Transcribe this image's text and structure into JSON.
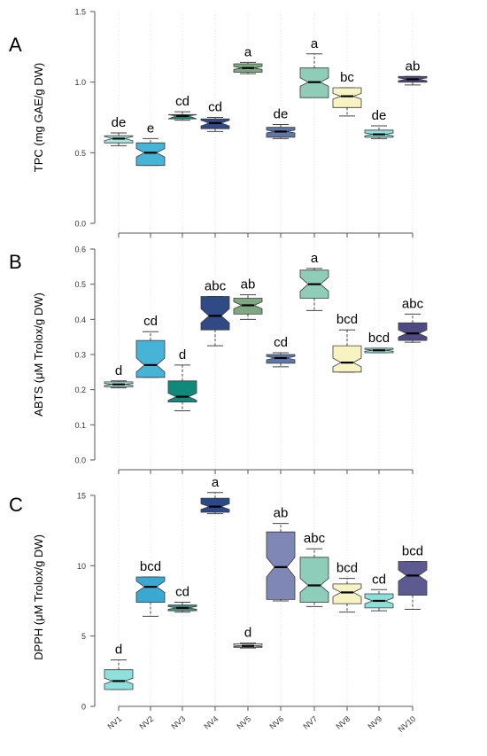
{
  "colors": {
    "NV1": "#a8e6e0",
    "NV2": "#47b3d6",
    "NV3": "#0f8a7a",
    "NV4": "#2f4a85",
    "NV5": "#7ea882",
    "NV6": "#5f77a6",
    "NV7": "#8fcdb8",
    "NV8": "#f7f3c2",
    "NV9": "#8be0da",
    "NV10": "#4f4a82",
    "DPPH_NV1": "#8de0dc",
    "DPPH_NV2": "#3aa9d2",
    "DPPH_NV3": "#3f8f86",
    "DPPH_NV4": "#2c4888",
    "DPPH_NV5": "#f2f2f2",
    "DPPH_NV6": "#7f87b4",
    "DPPH_NV7": "#8fcdbb",
    "DPPH_NV8": "#f7f3c2",
    "DPPH_NV9": "#8be0da",
    "DPPH_NV10": "#5d5a92"
  },
  "chart_data": [
    {
      "type": "boxplot",
      "panel_label": "A",
      "ylabel": "TPC (mg GAE/g DW)",
      "ylim": [
        0,
        1.5
      ],
      "yticks": [
        "0.0",
        "0.5",
        "1.0",
        "1.5"
      ],
      "categories": [
        "NV1",
        "NV2",
        "NV3",
        "NV4",
        "NV5",
        "NV6",
        "NV7",
        "NV8",
        "NV9",
        "NV10"
      ],
      "boxes": [
        {
          "q1": 0.57,
          "median": 0.6,
          "q3": 0.62,
          "notch_lo": 0.585,
          "notch_hi": 0.615,
          "whisker_lo": 0.55,
          "whisker_hi": 0.64,
          "letter": "de"
        },
        {
          "q1": 0.41,
          "median": 0.5,
          "q3": 0.57,
          "notch_lo": 0.47,
          "notch_hi": 0.53,
          "whisker_lo": 0.41,
          "whisker_hi": 0.6,
          "letter": "e"
        },
        {
          "q1": 0.74,
          "median": 0.76,
          "q3": 0.77,
          "notch_lo": 0.74,
          "notch_hi": 0.77,
          "whisker_lo": 0.73,
          "whisker_hi": 0.79,
          "letter": "cd"
        },
        {
          "q1": 0.67,
          "median": 0.71,
          "q3": 0.74,
          "notch_lo": 0.69,
          "notch_hi": 0.73,
          "whisker_lo": 0.65,
          "whisker_hi": 0.75,
          "letter": "cd"
        },
        {
          "q1": 1.07,
          "median": 1.1,
          "q3": 1.13,
          "notch_lo": 1.09,
          "notch_hi": 1.11,
          "whisker_lo": 1.06,
          "whisker_hi": 1.14,
          "letter": "a"
        },
        {
          "q1": 0.61,
          "median": 0.65,
          "q3": 0.68,
          "notch_lo": 0.64,
          "notch_hi": 0.66,
          "whisker_lo": 0.6,
          "whisker_hi": 0.7,
          "letter": "de"
        },
        {
          "q1": 0.89,
          "median": 1.0,
          "q3": 1.1,
          "notch_lo": 0.97,
          "notch_hi": 1.03,
          "whisker_lo": 0.97,
          "whisker_hi": 1.2,
          "letter": "a"
        },
        {
          "q1": 0.82,
          "median": 0.9,
          "q3": 0.96,
          "notch_lo": 0.88,
          "notch_hi": 0.92,
          "whisker_lo": 0.76,
          "whisker_hi": 0.96,
          "letter": "bc"
        },
        {
          "q1": 0.61,
          "median": 0.63,
          "q3": 0.66,
          "notch_lo": 0.62,
          "notch_hi": 0.64,
          "whisker_lo": 0.6,
          "whisker_hi": 0.69,
          "letter": "de"
        },
        {
          "q1": 1.0,
          "median": 1.02,
          "q3": 1.04,
          "notch_lo": 1.01,
          "notch_hi": 1.03,
          "whisker_lo": 0.98,
          "whisker_hi": 1.04,
          "letter": "ab"
        }
      ]
    },
    {
      "type": "boxplot",
      "panel_label": "B",
      "ylabel": "ABTS (μM Trolox/g DW)",
      "ylim": [
        0,
        0.6
      ],
      "yticks": [
        "0.0",
        "0.1",
        "0.2",
        "0.3",
        "0.4",
        "0.5",
        "0.6"
      ],
      "categories": [
        "NV1",
        "NV2",
        "NV3",
        "NV4",
        "NV5",
        "NV6",
        "NV7",
        "NV8",
        "NV9",
        "NV10"
      ],
      "boxes": [
        {
          "q1": 0.208,
          "median": 0.215,
          "q3": 0.222,
          "notch_lo": 0.212,
          "notch_hi": 0.218,
          "whisker_lo": 0.205,
          "whisker_hi": 0.225,
          "letter": "d"
        },
        {
          "q1": 0.235,
          "median": 0.27,
          "q3": 0.34,
          "notch_lo": 0.25,
          "notch_hi": 0.29,
          "whisker_lo": 0.235,
          "whisker_hi": 0.365,
          "letter": "cd"
        },
        {
          "q1": 0.165,
          "median": 0.18,
          "q3": 0.225,
          "notch_lo": 0.17,
          "notch_hi": 0.19,
          "whisker_lo": 0.14,
          "whisker_hi": 0.27,
          "letter": "d"
        },
        {
          "q1": 0.37,
          "median": 0.41,
          "q3": 0.465,
          "notch_lo": 0.39,
          "notch_hi": 0.43,
          "whisker_lo": 0.325,
          "whisker_hi": 0.465,
          "letter": "abc"
        },
        {
          "q1": 0.415,
          "median": 0.44,
          "q3": 0.46,
          "notch_lo": 0.43,
          "notch_hi": 0.45,
          "whisker_lo": 0.4,
          "whisker_hi": 0.47,
          "letter": "ab"
        },
        {
          "q1": 0.275,
          "median": 0.29,
          "q3": 0.3,
          "notch_lo": 0.285,
          "notch_hi": 0.295,
          "whisker_lo": 0.265,
          "whisker_hi": 0.305,
          "letter": "cd"
        },
        {
          "q1": 0.46,
          "median": 0.5,
          "q3": 0.54,
          "notch_lo": 0.48,
          "notch_hi": 0.52,
          "whisker_lo": 0.425,
          "whisker_hi": 0.545,
          "letter": "a"
        },
        {
          "q1": 0.25,
          "median": 0.277,
          "q3": 0.325,
          "notch_lo": 0.265,
          "notch_hi": 0.29,
          "whisker_lo": 0.25,
          "whisker_hi": 0.37,
          "letter": "bcd"
        },
        {
          "q1": 0.305,
          "median": 0.312,
          "q3": 0.318,
          "notch_lo": 0.309,
          "notch_hi": 0.315,
          "whisker_lo": 0.305,
          "whisker_hi": 0.318,
          "letter": "bcd"
        },
        {
          "q1": 0.34,
          "median": 0.36,
          "q3": 0.39,
          "notch_lo": 0.35,
          "notch_hi": 0.37,
          "whisker_lo": 0.335,
          "whisker_hi": 0.415,
          "letter": "abc"
        }
      ]
    },
    {
      "type": "boxplot",
      "panel_label": "C",
      "ylabel": "DPPH (μM Trolox/g DW)",
      "ylim": [
        0,
        15.5
      ],
      "yticks": [
        "0",
        "5",
        "10",
        "15"
      ],
      "categories": [
        "NV1",
        "NV2",
        "NV3",
        "NV4",
        "NV5",
        "NV6",
        "NV7",
        "NV8",
        "NV9",
        "NV10"
      ],
      "boxes": [
        {
          "q1": 1.2,
          "median": 1.8,
          "q3": 2.6,
          "notch_lo": 1.6,
          "notch_hi": 2.0,
          "whisker_lo": 1.2,
          "whisker_hi": 3.3,
          "letter": "d"
        },
        {
          "q1": 7.4,
          "median": 8.5,
          "q3": 9.2,
          "notch_lo": 8.1,
          "notch_hi": 8.9,
          "whisker_lo": 6.4,
          "whisker_hi": 9.2,
          "letter": "bcd"
        },
        {
          "q1": 6.8,
          "median": 7.0,
          "q3": 7.2,
          "notch_lo": 6.9,
          "notch_hi": 7.1,
          "whisker_lo": 6.7,
          "whisker_hi": 7.4,
          "letter": "cd"
        },
        {
          "q1": 13.8,
          "median": 14.2,
          "q3": 14.8,
          "notch_lo": 14.0,
          "notch_hi": 14.4,
          "whisker_lo": 13.7,
          "whisker_hi": 15.2,
          "letter": "a"
        },
        {
          "q1": 4.2,
          "median": 4.3,
          "q3": 4.45,
          "notch_lo": 4.25,
          "notch_hi": 4.35,
          "whisker_lo": 4.15,
          "whisker_hi": 4.5,
          "letter": "d"
        },
        {
          "q1": 7.6,
          "median": 9.9,
          "q3": 12.4,
          "notch_lo": 9.2,
          "notch_hi": 10.6,
          "whisker_lo": 7.5,
          "whisker_hi": 13.0,
          "letter": "ab"
        },
        {
          "q1": 7.4,
          "median": 8.6,
          "q3": 10.6,
          "notch_lo": 8.1,
          "notch_hi": 9.1,
          "whisker_lo": 7.1,
          "whisker_hi": 11.2,
          "letter": "abc"
        },
        {
          "q1": 7.3,
          "median": 8.1,
          "q3": 8.7,
          "notch_lo": 7.8,
          "notch_hi": 8.4,
          "whisker_lo": 6.7,
          "whisker_hi": 9.1,
          "letter": "bcd"
        },
        {
          "q1": 7.0,
          "median": 7.5,
          "q3": 8.0,
          "notch_lo": 7.3,
          "notch_hi": 7.7,
          "whisker_lo": 6.8,
          "whisker_hi": 8.3,
          "letter": "cd"
        },
        {
          "q1": 7.9,
          "median": 9.3,
          "q3": 10.3,
          "notch_lo": 8.9,
          "notch_hi": 9.7,
          "whisker_lo": 6.9,
          "whisker_hi": 10.3,
          "letter": "bcd"
        }
      ]
    }
  ]
}
